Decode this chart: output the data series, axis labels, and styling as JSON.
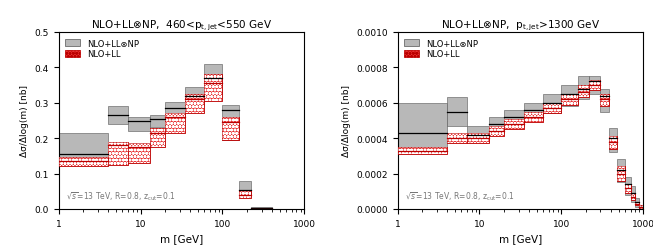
{
  "left_title": "NLO+LL⊗NP,  460<p$_\\mathrm{t,jet}$<550 GeV",
  "right_title": "NLO+LL⊗NP,  p$_\\mathrm{t,jet}$>1300 GeV",
  "ylabel": "Δσ/Δlog(m) [nb]",
  "xlabel": "m [GeV]",
  "annotation": "$\\sqrt{s}$=13 TeV, R=0.8, z$_\\mathrm{cut}$=0.1",
  "left": {
    "xlim": [
      1,
      1000
    ],
    "ylim": [
      0,
      0.5
    ],
    "yticks": [
      0,
      0.1,
      0.2,
      0.3,
      0.4,
      0.5
    ],
    "bins": [
      1,
      4,
      7,
      13,
      20,
      35,
      60,
      100,
      160,
      220,
      400
    ],
    "np_central": [
      0.155,
      0.265,
      0.248,
      0.253,
      0.285,
      0.32,
      0.37,
      0.28,
      0.055,
      0.003
    ],
    "np_lo": [
      0.125,
      0.24,
      0.22,
      0.232,
      0.262,
      0.295,
      0.325,
      0.195,
      0.04,
      0.0
    ],
    "np_hi": [
      0.215,
      0.29,
      0.26,
      0.265,
      0.302,
      0.345,
      0.41,
      0.295,
      0.08,
      0.005
    ],
    "ll_central": [
      0.135,
      0.18,
      0.175,
      0.215,
      0.26,
      0.31,
      0.355,
      0.245,
      0.04,
      0.001
    ],
    "ll_lo": [
      0.12,
      0.125,
      0.13,
      0.175,
      0.215,
      0.27,
      0.305,
      0.195,
      0.03,
      0.0
    ],
    "ll_hi": [
      0.148,
      0.188,
      0.185,
      0.228,
      0.27,
      0.325,
      0.38,
      0.26,
      0.055,
      0.003
    ]
  },
  "right": {
    "xlim": [
      1,
      1000
    ],
    "ylim": [
      0,
      0.001
    ],
    "yticks": [
      0,
      0.0002,
      0.0004,
      0.0006,
      0.0008,
      0.001
    ],
    "bins": [
      1,
      4,
      7,
      13,
      20,
      35,
      60,
      100,
      160,
      220,
      300,
      380,
      480,
      600,
      700,
      800,
      900,
      1000
    ],
    "np_central": [
      0.00043,
      0.00055,
      0.00042,
      0.00048,
      0.00052,
      0.00056,
      0.0006,
      0.00065,
      0.00068,
      0.00072,
      0.00064,
      0.0004,
      0.00022,
      0.00014,
      9e-05,
      4e-05,
      1e-05
    ],
    "np_lo": [
      0.00035,
      0.00047,
      0.00038,
      0.00043,
      0.00047,
      0.0005,
      0.00054,
      0.00058,
      0.00062,
      0.00065,
      0.00055,
      0.00032,
      0.00015,
      8e-05,
      4e-05,
      1e-05,
      0.0
    ],
    "np_hi": [
      0.0006,
      0.00063,
      0.00047,
      0.00052,
      0.00056,
      0.0006,
      0.00065,
      0.0007,
      0.00075,
      0.00075,
      0.00068,
      0.00046,
      0.00028,
      0.00018,
      0.00013,
      6e-05,
      2e-05
    ],
    "ll_central": [
      0.00033,
      0.0004,
      0.0004,
      0.00044,
      0.00048,
      0.00052,
      0.00057,
      0.00062,
      0.00066,
      0.0007,
      0.00062,
      0.00038,
      0.0002,
      0.00012,
      7e-05,
      3e-05,
      1e-05
    ],
    "ll_lo": [
      0.00031,
      0.00037,
      0.00037,
      0.00041,
      0.00045,
      0.00049,
      0.00054,
      0.00059,
      0.00063,
      0.00067,
      0.00058,
      0.00034,
      0.00016,
      9e-05,
      5e-05,
      2e-05,
      0.0
    ],
    "ll_hi": [
      0.00035,
      0.00043,
      0.00043,
      0.00047,
      0.00051,
      0.00055,
      0.0006,
      0.00065,
      0.0007,
      0.00073,
      0.00065,
      0.00041,
      0.00024,
      0.00014,
      9e-05,
      4e-05,
      2e-05
    ]
  },
  "gray_face": "#b8b8b8",
  "gray_edge": "#555555",
  "red_face": "#e83030",
  "red_edge": "#bb0000",
  "white_color": "#ffffff"
}
